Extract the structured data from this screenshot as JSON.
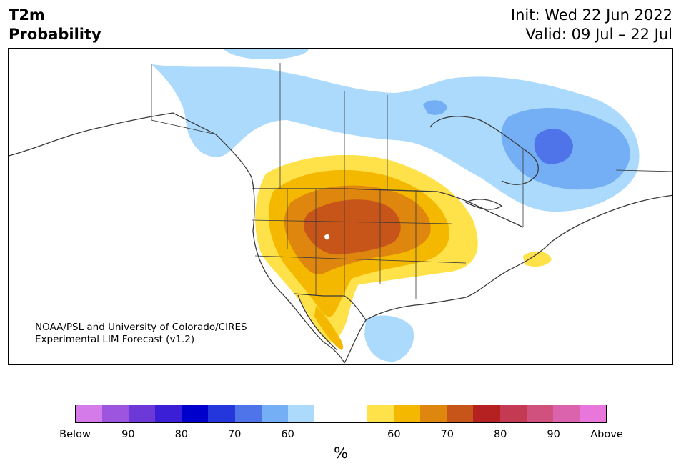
{
  "header": {
    "title_line1": "T2m",
    "title_line2": "Probability",
    "init": "Init: Wed 22 Jun 2022",
    "valid": "Valid: 09 Jul – 22 Jul"
  },
  "credit": {
    "line1": "NOAA/PSL and University of Colorado/CIRES",
    "line2": "Experimental LIM Forecast (v1.2)"
  },
  "colorbar": {
    "colors": [
      "#d57ae9",
      "#9d55e0",
      "#6c38d8",
      "#3a1fd6",
      "#0000cc",
      "#2437dc",
      "#4f74ea",
      "#74aef5",
      "#abdafd",
      "#ffffff",
      "#ffffff",
      "#ffe24a",
      "#f4b800",
      "#de860e",
      "#c75418",
      "#b52121",
      "#c43a52",
      "#d0507e",
      "#db62ac",
      "#e976da"
    ],
    "tick_labels": [
      "Below",
      "90",
      "80",
      "70",
      "60",
      "60",
      "70",
      "80",
      "90",
      "Above"
    ],
    "unit": "%"
  },
  "map": {
    "region": "North America",
    "colors": {
      "above_60": "#ffe24a",
      "above_65": "#f4b800",
      "above_70": "#de860e",
      "above_75": "#c75418",
      "below_60": "#abdafd",
      "below_65": "#74aef5",
      "below_70": "#4f74ea",
      "coast": "#3a3a3a"
    }
  }
}
